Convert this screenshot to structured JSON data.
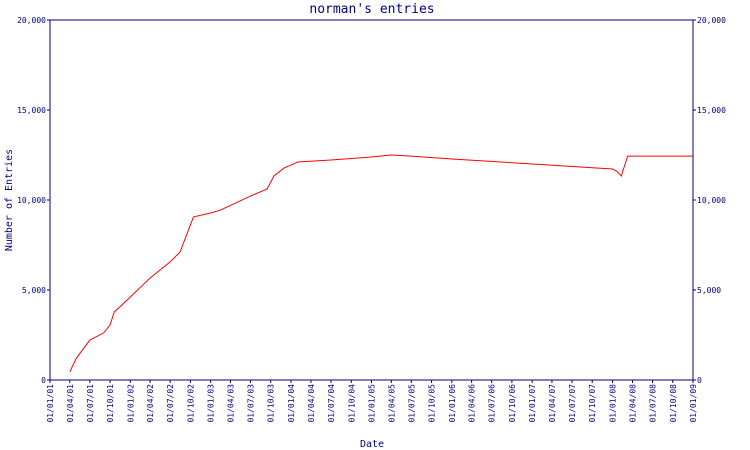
{
  "chart_data": {
    "type": "line",
    "title": "norman's entries",
    "xlabel": "Date",
    "ylabel": "Number of Entries",
    "xlim": [
      "2001-01-01",
      "2009-01-01"
    ],
    "xticks": [
      {
        "value": "2001-01-01",
        "label": "01/01/01"
      },
      {
        "value": "2001-04-01",
        "label": "01/04/01"
      },
      {
        "value": "2001-07-01",
        "label": "01/07/01"
      },
      {
        "value": "2001-10-01",
        "label": "01/10/01"
      },
      {
        "value": "2002-01-01",
        "label": "01/01/02"
      },
      {
        "value": "2002-04-01",
        "label": "01/04/02"
      },
      {
        "value": "2002-07-01",
        "label": "01/07/02"
      },
      {
        "value": "2002-10-01",
        "label": "01/10/02"
      },
      {
        "value": "2003-01-01",
        "label": "01/01/03"
      },
      {
        "value": "2003-04-01",
        "label": "01/04/03"
      },
      {
        "value": "2003-07-01",
        "label": "01/07/03"
      },
      {
        "value": "2003-10-01",
        "label": "01/10/03"
      },
      {
        "value": "2004-01-01",
        "label": "01/01/04"
      },
      {
        "value": "2004-04-01",
        "label": "01/04/04"
      },
      {
        "value": "2004-07-01",
        "label": "01/07/04"
      },
      {
        "value": "2004-10-01",
        "label": "01/10/04"
      },
      {
        "value": "2005-01-01",
        "label": "01/01/05"
      },
      {
        "value": "2005-04-01",
        "label": "01/04/05"
      },
      {
        "value": "2005-07-01",
        "label": "01/07/05"
      },
      {
        "value": "2005-10-01",
        "label": "01/10/05"
      },
      {
        "value": "2006-01-01",
        "label": "01/01/06"
      },
      {
        "value": "2006-04-01",
        "label": "01/04/06"
      },
      {
        "value": "2006-07-01",
        "label": "01/07/06"
      },
      {
        "value": "2006-10-01",
        "label": "01/10/06"
      },
      {
        "value": "2007-01-01",
        "label": "01/01/07"
      },
      {
        "value": "2007-04-01",
        "label": "01/04/07"
      },
      {
        "value": "2007-07-01",
        "label": "01/07/07"
      },
      {
        "value": "2007-10-01",
        "label": "01/10/07"
      },
      {
        "value": "2008-01-01",
        "label": "01/01/08"
      },
      {
        "value": "2008-04-01",
        "label": "01/04/08"
      },
      {
        "value": "2008-07-01",
        "label": "01/07/08"
      },
      {
        "value": "2008-10-01",
        "label": "01/10/08"
      },
      {
        "value": "2009-01-01",
        "label": "01/01/09"
      }
    ],
    "ylim": [
      0,
      20000
    ],
    "yticks": [
      0,
      {
        "value": 5000,
        "label": "5,000"
      },
      {
        "value": 10000,
        "label": "10,000"
      },
      {
        "value": 15000,
        "label": "15,000"
      },
      {
        "value": 20000,
        "label": "20,000"
      }
    ],
    "y2lim": [
      0,
      20000
    ],
    "y2ticks": [
      0,
      {
        "value": 5000,
        "label": "5,000"
      },
      {
        "value": 10000,
        "label": "10,000"
      },
      {
        "value": 15000,
        "label": "15,000"
      },
      {
        "value": 20000,
        "label": "20,000"
      }
    ],
    "x": [
      "2001-04-01",
      "2001-05-01",
      "2001-07-01",
      "2001-09-01",
      "2001-10-01",
      "2001-10-20",
      "2001-11-15",
      "2002-01-01",
      "2002-04-01",
      "2002-07-01",
      "2002-08-15",
      "2002-10-15",
      "2003-01-01",
      "2003-02-15",
      "2003-07-01",
      "2003-09-15",
      "2003-10-15",
      "2003-12-01",
      "2004-01-01",
      "2004-02-01",
      "2004-07-01",
      "2005-01-01",
      "2005-04-01",
      "2005-07-01",
      "2006-01-01",
      "2007-01-01",
      "2008-01-01",
      "2008-01-20",
      "2008-02-10",
      "2008-03-10",
      "2009-01-01"
    ],
    "series": [
      {
        "color": "#ff0000",
        "values": [
          450,
          1220,
          2220,
          2610,
          3060,
          3780,
          4060,
          4610,
          5670,
          6560,
          7110,
          9060,
          9280,
          9440,
          10220,
          10610,
          11330,
          11780,
          11940,
          12110,
          12220,
          12390,
          12500,
          12440,
          12280,
          12000,
          11720,
          11610,
          11330,
          12440,
          12440
        ]
      }
    ],
    "axis_color": "#000080"
  }
}
